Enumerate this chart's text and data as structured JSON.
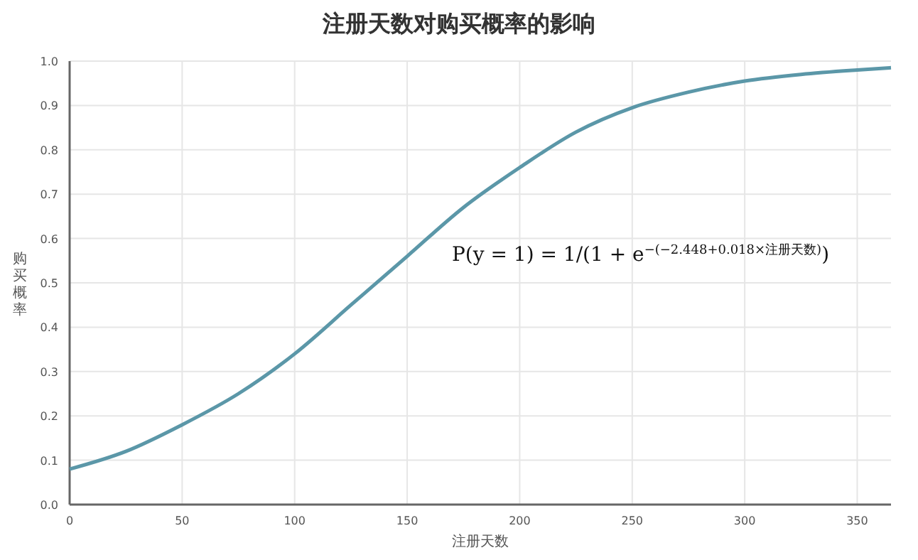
{
  "chart_data": {
    "type": "line",
    "title": "注册天数对购买概率的影响",
    "xlabel": "注册天数",
    "ylabel": "购买概率",
    "x": [
      0,
      25,
      50,
      75,
      100,
      125,
      150,
      175,
      200,
      225,
      250,
      275,
      300,
      325,
      350,
      365
    ],
    "series": [
      {
        "color": "#5b97a8",
        "values": [
          0.08,
          0.12,
          0.18,
          0.25,
          0.34,
          0.45,
          0.56,
          0.67,
          0.76,
          0.84,
          0.895,
          0.93,
          0.955,
          0.97,
          0.98,
          0.985
        ]
      }
    ],
    "xlim": [
      0,
      365
    ],
    "xticks": [
      0,
      50,
      100,
      150,
      200,
      250,
      300,
      350
    ],
    "ylim": [
      0,
      1
    ],
    "yticks": [
      {
        "value": 0,
        "label": "0.0"
      },
      {
        "value": 0.1,
        "label": "0.1"
      },
      {
        "value": 0.2,
        "label": "0.2"
      },
      {
        "value": 0.3,
        "label": "0.3"
      },
      {
        "value": 0.4,
        "label": "0.4"
      },
      {
        "value": 0.5,
        "label": "0.5"
      },
      {
        "value": 0.6,
        "label": "0.6"
      },
      {
        "value": 0.7,
        "label": "0.7"
      },
      {
        "value": 0.8,
        "label": "0.8"
      },
      {
        "value": 0.9,
        "label": "0.9"
      },
      {
        "value": 1,
        "label": "1.0"
      }
    ],
    "grid": true,
    "marker": "none",
    "line_style": "solid",
    "annotations": [
      "P(y = 1) = 1/(1 + e$^{−(−2.448+0.018×注册天数)}$)"
    ]
  }
}
